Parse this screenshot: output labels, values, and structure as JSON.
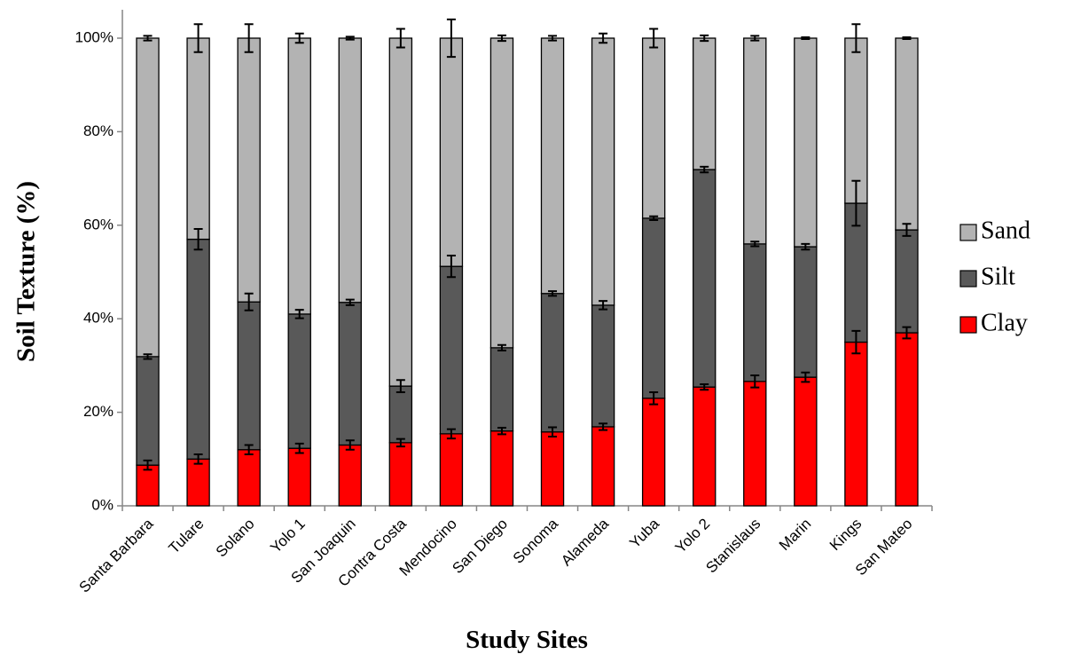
{
  "chart_data": {
    "type": "stacked-bar",
    "y_label": "Soil Texture (%)",
    "x_label": "Study Sites",
    "categories": [
      "Santa Barbara",
      "Tulare",
      "Solano",
      "Yolo 1",
      "San Joaquin",
      "Contra Costa",
      "Mendocino",
      "San Diego",
      "Sonoma",
      "Alameda",
      "Yuba",
      "Yolo 2",
      "Stanislaus",
      "Marin",
      "Kings",
      "San Mateo"
    ],
    "series": [
      {
        "name": "Clay",
        "color": "#ff0000",
        "values": [
          8.7,
          10,
          12,
          12.3,
          13,
          13.5,
          15.4,
          16,
          15.8,
          16.9,
          23,
          25.4,
          26.6,
          27.5,
          35,
          37
        ],
        "errors": [
          1,
          1,
          1,
          1,
          1,
          0.8,
          1,
          0.7,
          1,
          0.7,
          1.3,
          0.6,
          1.3,
          1,
          2.4,
          1.2
        ]
      },
      {
        "name": "Silt",
        "color": "#595959",
        "values": [
          23.2,
          47,
          31.6,
          28.7,
          30.5,
          12.1,
          35.8,
          17.8,
          29.6,
          26,
          38.5,
          46.5,
          29.4,
          27.9,
          29.7,
          22
        ],
        "errors": [
          0.5,
          2.2,
          1.8,
          0.9,
          0.6,
          1.3,
          2.3,
          0.6,
          0.5,
          0.9,
          0.4,
          0.6,
          0.5,
          0.6,
          4.8,
          1.3
        ]
      },
      {
        "name": "Sand",
        "color": "#b3b3b3",
        "values": [
          68.1,
          43,
          56.4,
          59,
          56.5,
          74.4,
          48.8,
          66.2,
          54.6,
          57.1,
          38.5,
          28.1,
          44,
          44.6,
          35.3,
          41
        ],
        "errors": [
          0.5,
          3,
          3,
          1,
          0.3,
          2,
          4,
          0.6,
          0.5,
          1,
          2,
          0.6,
          0.5,
          0.2,
          3,
          0.2
        ]
      }
    ],
    "ylim": [
      0,
      100
    ],
    "yticks": [
      {
        "value": 0,
        "label": "0%"
      },
      {
        "value": 20,
        "label": "20%"
      },
      {
        "value": 40,
        "label": "40%"
      },
      {
        "value": 60,
        "label": "60%"
      },
      {
        "value": 80,
        "label": "80%"
      },
      {
        "value": 100,
        "label": "100%"
      }
    ],
    "grid": false,
    "legend": "right"
  }
}
